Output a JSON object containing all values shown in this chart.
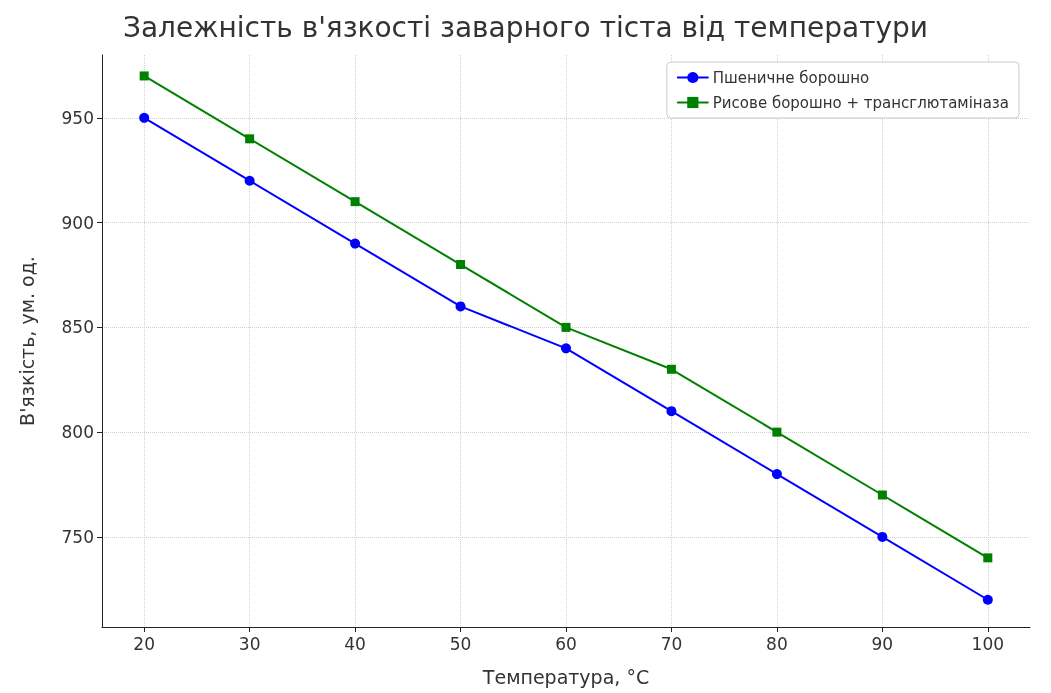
{
  "chart_data": {
    "type": "line",
    "title": "Залежність в'язкості заварного тіста від температури",
    "xlabel": "Температура, °C",
    "ylabel": "В'язкість, ум. од.",
    "x": [
      20,
      30,
      40,
      50,
      60,
      70,
      80,
      90,
      100
    ],
    "series": [
      {
        "name": "Пшеничне борошно",
        "color": "#0000ff",
        "marker": "circle",
        "values": [
          950,
          920,
          890,
          860,
          840,
          810,
          780,
          750,
          720
        ]
      },
      {
        "name": "Рисове борошно + трансглютаміназа",
        "color": "#008000",
        "marker": "square",
        "values": [
          970,
          940,
          910,
          880,
          850,
          830,
          800,
          770,
          740
        ]
      }
    ],
    "xlim": [
      16,
      104
    ],
    "xticks": [
      20,
      30,
      40,
      50,
      60,
      70,
      80,
      90,
      100
    ],
    "ylim": [
      707,
      980
    ],
    "yticks": [
      750,
      800,
      850,
      900,
      950
    ],
    "grid": true,
    "legend": "top right",
    "line_style": "solid"
  }
}
